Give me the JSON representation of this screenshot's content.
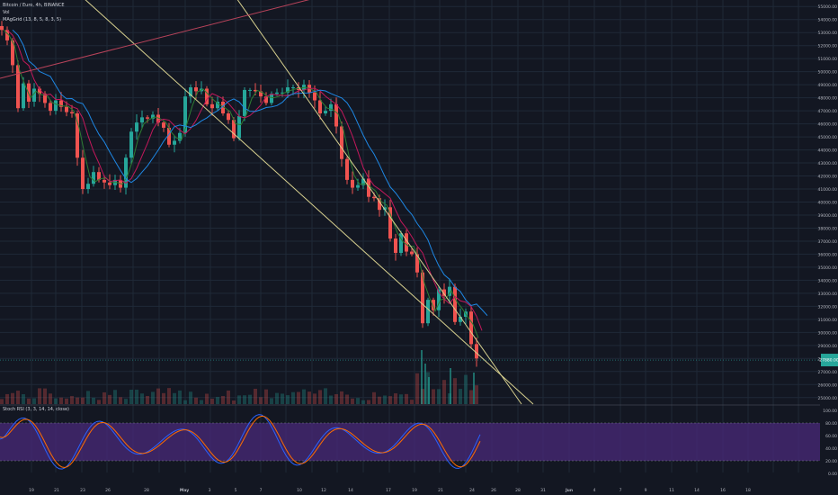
{
  "header": {
    "symbol": "Bitcoin / Euro, 4h, BINANCE",
    "volume_label": "Vol",
    "ma_label": "MAgGrid (13, 8, 5, 8, 3, 5)"
  },
  "rsi": {
    "label": "Stoch RSI (3, 3, 14, 14, close)"
  },
  "colors": {
    "background": "#131722",
    "grid": "#1f2937",
    "up": "#26a69a",
    "down": "#ef5350",
    "trendline_yellow": "#d6cf8e",
    "trendline_red": "#b8435a",
    "rsi_band": "#4a2a7a",
    "rsi_k": "#2962ff",
    "rsi_d": "#ff6d00",
    "price_badge": "#26a69a"
  },
  "chart_data": {
    "type": "candlestick",
    "title": "Bitcoin / Euro, 4h, BINANCE",
    "y_axis_labels": [
      "55000.00",
      "54000.00",
      "53000.00",
      "52000.00",
      "51000.00",
      "50000.00",
      "49000.00",
      "48000.00",
      "47000.00",
      "46000.00",
      "45000.00",
      "44000.00",
      "43000.00",
      "42000.00",
      "41000.00",
      "40000.00",
      "39000.00",
      "38000.00",
      "37000.00",
      "36000.00",
      "35000.00",
      "34000.00",
      "33000.00",
      "32000.00",
      "31000.00",
      "30000.00",
      "29000.00",
      "28000.00",
      "27000.00",
      "26000.00",
      "25000.00"
    ],
    "ylim": [
      24500,
      55500
    ],
    "x_tick_labels": [
      "19",
      "21",
      "23",
      "26",
      "28",
      "May",
      "3",
      "5",
      "7",
      "10",
      "12",
      "14",
      "17",
      "19",
      "21",
      "24",
      "26",
      "28",
      "31",
      "Jun",
      "4",
      "7",
      "9",
      "11",
      "14",
      "16",
      "18"
    ],
    "rsi_axis_labels": [
      "100.00",
      "80.00",
      "60.00",
      "40.00",
      "20.00",
      "0.00"
    ],
    "rsi_bands": [
      20,
      80
    ],
    "last_price": 27880,
    "close_series_approx": [
      [
        0,
        53200
      ],
      [
        6,
        52400
      ],
      [
        12,
        50500
      ],
      [
        18,
        47200
      ],
      [
        24,
        49100
      ],
      [
        30,
        47700
      ],
      [
        36,
        48700
      ],
      [
        42,
        48300
      ],
      [
        48,
        47600
      ],
      [
        54,
        47000
      ],
      [
        60,
        47800
      ],
      [
        66,
        47300
      ],
      [
        72,
        46900
      ],
      [
        78,
        46800
      ],
      [
        84,
        43400
      ],
      [
        90,
        41000
      ],
      [
        96,
        41400
      ],
      [
        102,
        42300
      ],
      [
        108,
        41700
      ],
      [
        114,
        41500
      ],
      [
        120,
        41300
      ],
      [
        126,
        41700
      ],
      [
        132,
        41100
      ],
      [
        138,
        43400
      ],
      [
        144,
        45400
      ],
      [
        150,
        46100
      ],
      [
        156,
        46500
      ],
      [
        162,
        46400
      ],
      [
        168,
        46700
      ],
      [
        174,
        46100
      ],
      [
        180,
        45700
      ],
      [
        186,
        44400
      ],
      [
        192,
        44700
      ],
      [
        198,
        45300
      ],
      [
        204,
        48100
      ],
      [
        210,
        48800
      ],
      [
        216,
        48500
      ],
      [
        222,
        48700
      ],
      [
        228,
        47500
      ],
      [
        234,
        47200
      ],
      [
        240,
        47700
      ],
      [
        246,
        46800
      ],
      [
        252,
        46300
      ],
      [
        258,
        44900
      ],
      [
        264,
        46600
      ],
      [
        270,
        48600
      ],
      [
        276,
        48600
      ],
      [
        282,
        48500
      ],
      [
        288,
        48100
      ],
      [
        294,
        47600
      ],
      [
        300,
        48300
      ],
      [
        306,
        48400
      ],
      [
        312,
        48400
      ],
      [
        318,
        48800
      ],
      [
        324,
        48800
      ],
      [
        330,
        48600
      ],
      [
        336,
        49000
      ],
      [
        342,
        48400
      ],
      [
        348,
        47800
      ],
      [
        354,
        46800
      ],
      [
        360,
        47000
      ],
      [
        366,
        47500
      ],
      [
        372,
        45800
      ],
      [
        378,
        43300
      ],
      [
        384,
        41700
      ],
      [
        390,
        41100
      ],
      [
        396,
        41300
      ],
      [
        402,
        41800
      ],
      [
        408,
        40400
      ],
      [
        414,
        40300
      ],
      [
        420,
        39400
      ],
      [
        426,
        39600
      ],
      [
        432,
        37200
      ],
      [
        438,
        36100
      ],
      [
        444,
        37600
      ],
      [
        450,
        36200
      ],
      [
        456,
        36000
      ],
      [
        462,
        34600
      ],
      [
        468,
        30700
      ],
      [
        474,
        32500
      ],
      [
        480,
        31700
      ],
      [
        486,
        33300
      ],
      [
        492,
        32800
      ],
      [
        498,
        33500
      ],
      [
        504,
        30800
      ],
      [
        510,
        31200
      ],
      [
        516,
        31600
      ],
      [
        522,
        29100
      ],
      [
        528,
        28000
      ]
    ],
    "trendlines": [
      {
        "name": "",
        "from": [
          93,
          -2
        ],
        "to": [
          593,
          449
        ]
      },
      {
        "name": "",
        "from": [
          263,
          -2
        ],
        "to": [
          580,
          449
        ]
      },
      {
        "name": "",
        "from": [
          0,
          87
        ],
        "to": [
          350,
          -2
        ]
      }
    ]
  }
}
